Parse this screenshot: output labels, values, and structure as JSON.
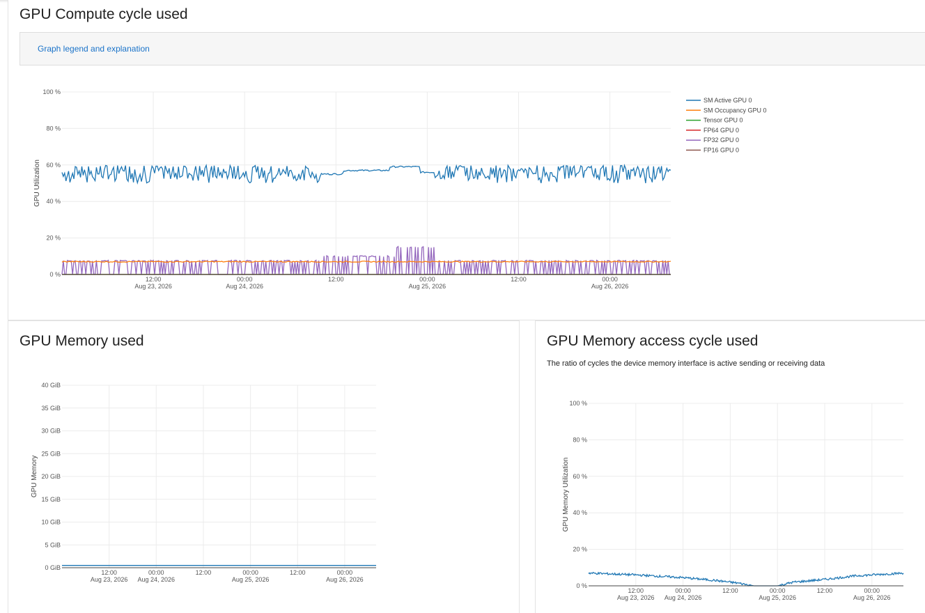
{
  "panels": {
    "compute": {
      "title": "GPU Compute cycle used",
      "legend_link": "Graph legend and explanation"
    },
    "memory": {
      "title": "GPU Memory used"
    },
    "access": {
      "title": "GPU Memory access cycle used",
      "subtitle": "The ratio of cycles the device memory interface is active sending or receiving data"
    }
  },
  "chart_data": [
    {
      "type": "line",
      "ylabel": "GPU Utilization",
      "ylim": [
        0,
        100
      ],
      "yticks": [
        "0 %",
        "20 %",
        "40 %",
        "60 %",
        "80 %",
        "100 %"
      ],
      "x_range": [
        "2026-08-23 00:00",
        "2026-08-26 08:00"
      ],
      "x_ticks": [
        {
          "t": 12,
          "line1": "12:00",
          "line2": "Aug 23, 2026"
        },
        {
          "t": 24,
          "line1": "00:00",
          "line2": "Aug 24, 2026"
        },
        {
          "t": 36,
          "line1": "12:00",
          "line2": ""
        },
        {
          "t": 48,
          "line1": "00:00",
          "line2": "Aug 25, 2026"
        },
        {
          "t": 60,
          "line1": "12:00",
          "line2": ""
        },
        {
          "t": 72,
          "line1": "00:00",
          "line2": "Aug 26, 2026"
        }
      ],
      "legend_position": "top-right",
      "grid": true,
      "series": [
        {
          "name": "SM Active GPU 0",
          "color": "#1f77b4",
          "shape": "noisy",
          "base": 55.5,
          "amp": 3.5,
          "quiet": [
            [
              34,
              37,
              55
            ],
            [
              37,
              43,
              57
            ],
            [
              43,
              47,
              59
            ],
            [
              47,
              49,
              56
            ]
          ]
        },
        {
          "name": "SM Occupancy GPU 0",
          "color": "#ff7f0e",
          "shape": "flat",
          "base": 7,
          "amp": 0.6
        },
        {
          "name": "Tensor GPU 0",
          "color": "#2ca02c",
          "shape": "flat",
          "base": 0,
          "amp": 0
        },
        {
          "name": "FP64 GPU 0",
          "color": "#d62728",
          "shape": "flat",
          "base": 0,
          "amp": 0
        },
        {
          "name": "FP32 GPU 0",
          "color": "#9467bd",
          "shape": "spiky",
          "base": 7.5,
          "amp": 0,
          "high": [
            [
              34,
              44,
              10
            ],
            [
              44,
              49,
              15
            ]
          ]
        },
        {
          "name": "FP16 GPU 0",
          "color": "#8c564b",
          "shape": "flat",
          "base": 0,
          "amp": 0
        }
      ]
    },
    {
      "type": "line",
      "ylabel": "GPU Memory",
      "ylim": [
        0,
        40
      ],
      "yticks": [
        "0 GiB",
        "5 GiB",
        "10 GiB",
        "15 GiB",
        "20 GiB",
        "25 GiB",
        "30 GiB",
        "35 GiB",
        "40 GiB"
      ],
      "x_range": [
        "2026-08-23 00:00",
        "2026-08-26 08:00"
      ],
      "x_ticks": [
        {
          "t": 12,
          "line1": "12:00",
          "line2": "Aug 23, 2026"
        },
        {
          "t": 24,
          "line1": "00:00",
          "line2": "Aug 24, 2026"
        },
        {
          "t": 36,
          "line1": "12:00",
          "line2": ""
        },
        {
          "t": 48,
          "line1": "00:00",
          "line2": "Aug 25, 2026"
        },
        {
          "t": 60,
          "line1": "12:00",
          "line2": ""
        },
        {
          "t": 72,
          "line1": "00:00",
          "line2": "Aug 26, 2026"
        }
      ],
      "grid": true,
      "series": [
        {
          "color": "#1f77b4",
          "shape": "flat",
          "base": 0.5,
          "amp": 0
        }
      ]
    },
    {
      "type": "line",
      "ylabel": "GPU Memory Utilization",
      "ylim": [
        0,
        100
      ],
      "yticks": [
        "0 %",
        "20 %",
        "40 %",
        "60 %",
        "80 %",
        "100 %"
      ],
      "x_range": [
        "2026-08-23 00:00",
        "2026-08-26 08:00"
      ],
      "x_ticks": [
        {
          "t": 12,
          "line1": "12:00",
          "line2": "Aug 23, 2026"
        },
        {
          "t": 24,
          "line1": "00:00",
          "line2": "Aug 24, 2026"
        },
        {
          "t": 36,
          "line1": "12:00",
          "line2": ""
        },
        {
          "t": 48,
          "line1": "00:00",
          "line2": "Aug 25, 2026"
        },
        {
          "t": 60,
          "line1": "12:00",
          "line2": ""
        },
        {
          "t": 72,
          "line1": "00:00",
          "line2": "Aug 26, 2026"
        }
      ],
      "grid": true,
      "series": [
        {
          "color": "#1f77b4",
          "shape": "trend",
          "points": [
            [
              0,
              7
            ],
            [
              12,
              6
            ],
            [
              24,
              4.5
            ],
            [
              32,
              3
            ],
            [
              38,
              1.5
            ],
            [
              42,
              0
            ],
            [
              48,
              0
            ],
            [
              52,
              2
            ],
            [
              60,
              3.5
            ],
            [
              68,
              5.5
            ],
            [
              80,
              7
            ]
          ],
          "amp": 0.6
        }
      ]
    }
  ]
}
